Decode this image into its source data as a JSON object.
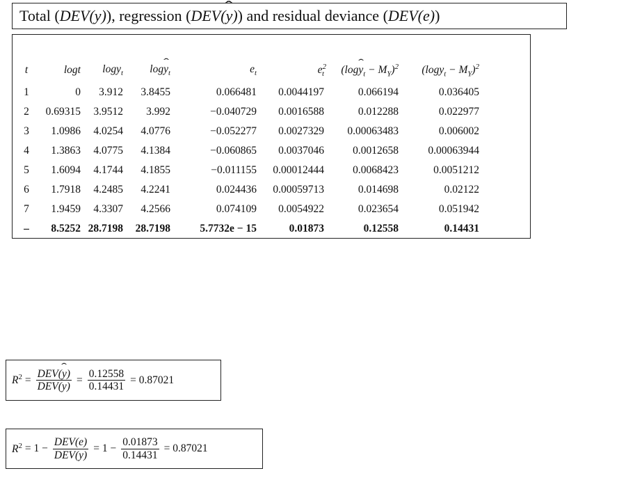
{
  "title": {
    "p1": "Total (",
    "dev_y": "DEV(y)",
    "p2": "), regression (",
    "dev_yhat_pre": "DEV(",
    "yhat": "y",
    "dev_yhat_post": ")",
    "p3": ") and residual deviance (",
    "dev_e": "DEV(e)",
    "p4": ")"
  },
  "table": {
    "headers": {
      "t": "t",
      "logt": "logt",
      "logy": "logy",
      "logy_sub": "t",
      "logyhat_pre": "log",
      "logyhat_y": "y",
      "logyhat_sub": "t",
      "e": "e",
      "e_sub": "t",
      "e2": "e",
      "e2_sup": "2",
      "e2_sub": "t",
      "reg_dev": "(log",
      "reg_dev_y": "y",
      "reg_dev_sub": "t",
      "reg_dev_mid": " − M",
      "reg_dev_msub": "Y",
      "reg_dev_end": ")",
      "reg_dev_sup": "2",
      "tot_dev": "(logy",
      "tot_dev_sub": "t",
      "tot_dev_mid": " − M",
      "tot_dev_msub": "Y",
      "tot_dev_end": ")",
      "tot_dev_sup": "2"
    },
    "rows": [
      [
        "1",
        "0",
        "3.912",
        "3.8455",
        "0.066481",
        "0.0044197",
        "0.066194",
        "0.036405"
      ],
      [
        "2",
        "0.69315",
        "3.9512",
        "3.992",
        "−0.040729",
        "0.0016588",
        "0.012288",
        "0.022977"
      ],
      [
        "3",
        "1.0986",
        "4.0254",
        "4.0776",
        "−0.052277",
        "0.0027329",
        "0.00063483",
        "0.006002"
      ],
      [
        "4",
        "1.3863",
        "4.0775",
        "4.1384",
        "−0.060865",
        "0.0037046",
        "0.0012658",
        "0.00063944"
      ],
      [
        "5",
        "1.6094",
        "4.1744",
        "4.1855",
        "−0.011155",
        "0.00012444",
        "0.0068423",
        "0.0051212"
      ],
      [
        "6",
        "1.7918",
        "4.2485",
        "4.2241",
        "0.024436",
        "0.00059713",
        "0.014698",
        "0.02122"
      ],
      [
        "7",
        "1.9459",
        "4.3307",
        "4.2566",
        "0.074109",
        "0.0054922",
        "0.023654",
        "0.051942"
      ]
    ],
    "total": [
      "–",
      "8.5252",
      "28.7198",
      "28.7198",
      "5.7732e − 15",
      "0.01873",
      "0.12558",
      "0.14431"
    ]
  },
  "formula1": {
    "lhs": "R",
    "lhs_sup": "2",
    "eq1": "=",
    "num_pre": "DEV(",
    "num_y": "y",
    "num_post": ")",
    "den": "DEV(y)",
    "eq2": "=",
    "num2": "0.12558",
    "den2": "0.14431",
    "eq3": "= 0.87021"
  },
  "formula2": {
    "lhs": "R",
    "lhs_sup": "2",
    "eq1": "= 1 −",
    "num": "DEV(e)",
    "den": "DEV(y)",
    "eq2": "= 1 −",
    "num2": "0.01873",
    "den2": "0.14431",
    "eq3": "= 0.87021"
  }
}
